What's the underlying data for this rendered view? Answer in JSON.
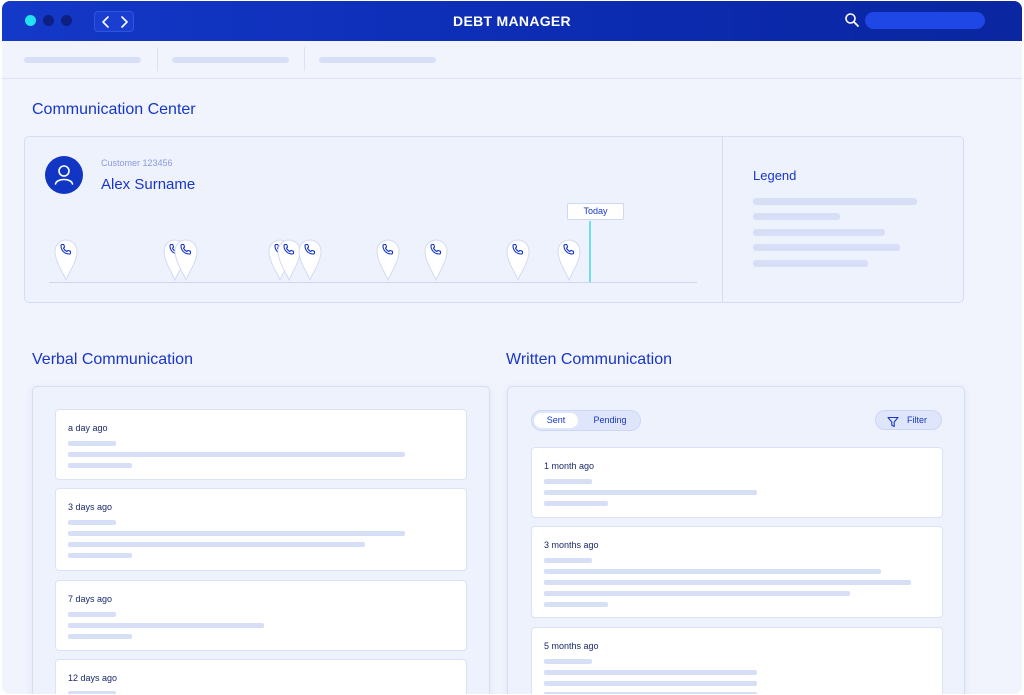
{
  "app": {
    "title": "DEBT MANAGER"
  },
  "communication_center": {
    "title": "Communication Center",
    "customer": {
      "id": "Customer 123456",
      "name": "Alex Surname"
    },
    "today_label": "Today",
    "legend_title": "Legend"
  },
  "verbal": {
    "title": "Verbal Communication",
    "items": [
      {
        "time": "a day ago"
      },
      {
        "time": "3 days ago"
      },
      {
        "time": "7 days ago"
      },
      {
        "time": "12 days ago"
      }
    ]
  },
  "written": {
    "title": "Written Communication",
    "toggle": {
      "sent": "Sent",
      "pending": "Pending"
    },
    "filter_label": "Filter",
    "items": [
      {
        "time": "1 month ago"
      },
      {
        "time": "3 months ago"
      },
      {
        "time": "5 months ago"
      }
    ]
  },
  "icons": {
    "traffic_lights": [
      "window-dot-icon",
      "window-dot-icon",
      "window-dot-icon"
    ],
    "nav": [
      "chevron-left-icon",
      "chevron-right-icon"
    ],
    "search": "search-icon",
    "avatar": "user-icon",
    "markers": "phone-icon",
    "filter": "filter-icon"
  },
  "colors": {
    "brand": "#1236c4",
    "accent": "#22e1f0",
    "background": "#f1f4fd"
  }
}
